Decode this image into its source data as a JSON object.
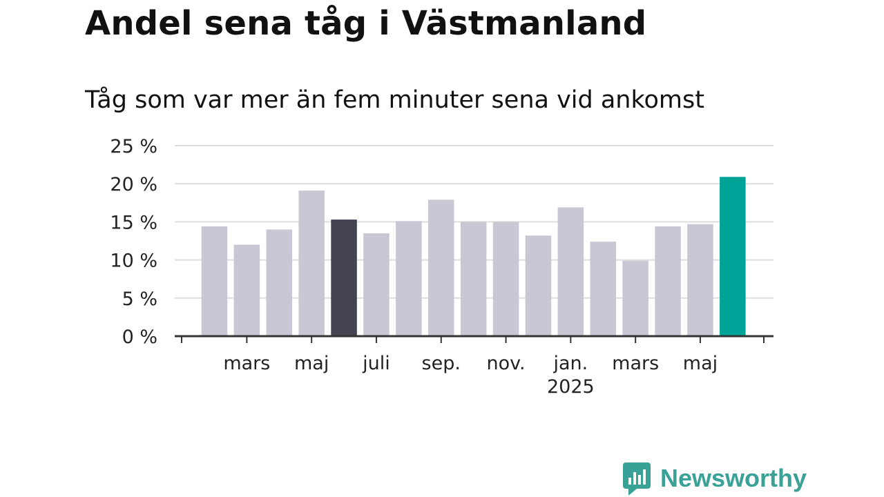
{
  "title": "Andel sena tåg i Västmanland",
  "subtitle": "Tåg som var mer än fem minuter sena vid ankomst",
  "brand": {
    "name": "Newsworthy",
    "color": "#3aa196"
  },
  "colors": {
    "bar": "#c8c7d3",
    "highlight_dark": "#434352",
    "highlight_accent": "#00a398",
    "grid": "#dddddd",
    "axis": "#333333"
  },
  "chart_data": {
    "type": "bar",
    "months": [
      "2024-02",
      "2024-03",
      "2024-04",
      "2024-05",
      "2024-06",
      "2024-07",
      "2024-08",
      "2024-09",
      "2024-10",
      "2024-11",
      "2024-12",
      "2025-01",
      "2025-02",
      "2025-03",
      "2025-04",
      "2025-05",
      "2025-06"
    ],
    "values": [
      14.4,
      12.0,
      14.0,
      19.1,
      15.3,
      13.5,
      15.1,
      17.9,
      15.0,
      15.0,
      13.2,
      16.9,
      12.4,
      9.9,
      14.4,
      14.7,
      20.9
    ],
    "highlight": {
      "2024-06": "dark",
      "2025-06": "accent"
    },
    "ylim": [
      0,
      25
    ],
    "yticks": [
      0,
      5,
      10,
      15,
      20,
      25
    ],
    "ytick_labels": [
      "0 %",
      "5 %",
      "10 %",
      "15 %",
      "20 %",
      "25 %"
    ],
    "xticks": [
      {
        "label": "mars",
        "month": "2024-03"
      },
      {
        "label": "maj",
        "month": "2024-05"
      },
      {
        "label": "juli",
        "month": "2024-07"
      },
      {
        "label": "sep.",
        "month": "2024-09"
      },
      {
        "label": "nov.",
        "month": "2024-11"
      },
      {
        "label": "jan.",
        "sublabel": "2025",
        "month": "2025-01"
      },
      {
        "label": "mars",
        "month": "2025-03"
      },
      {
        "label": "maj",
        "month": "2025-05"
      }
    ],
    "grid": true
  }
}
